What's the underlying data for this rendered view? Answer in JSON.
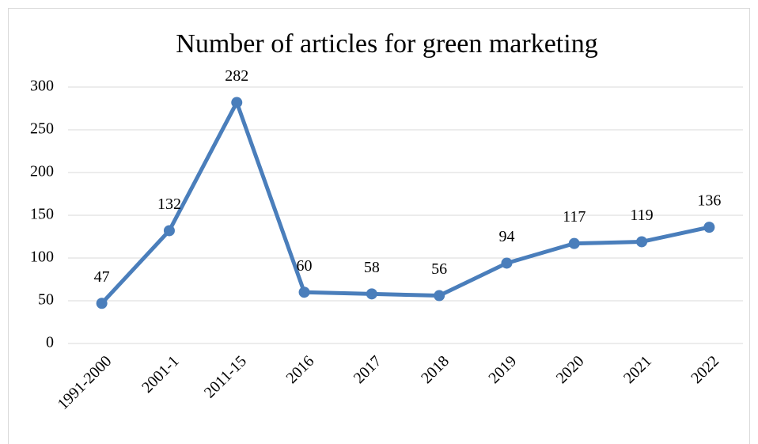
{
  "chart_data": {
    "type": "line",
    "title": "Number of articles for green marketing",
    "categories": [
      "1991-2000",
      "2001-1",
      "2011-15",
      "2016",
      "2017",
      "2018",
      "2019",
      "2020",
      "2021",
      "2022"
    ],
    "values": [
      47,
      132,
      282,
      60,
      58,
      56,
      94,
      117,
      119,
      136
    ],
    "color": "#4a7ebb",
    "ylim": [
      0,
      300
    ],
    "yticks": [
      0,
      50,
      100,
      150,
      200,
      250,
      300
    ],
    "grid": true
  }
}
